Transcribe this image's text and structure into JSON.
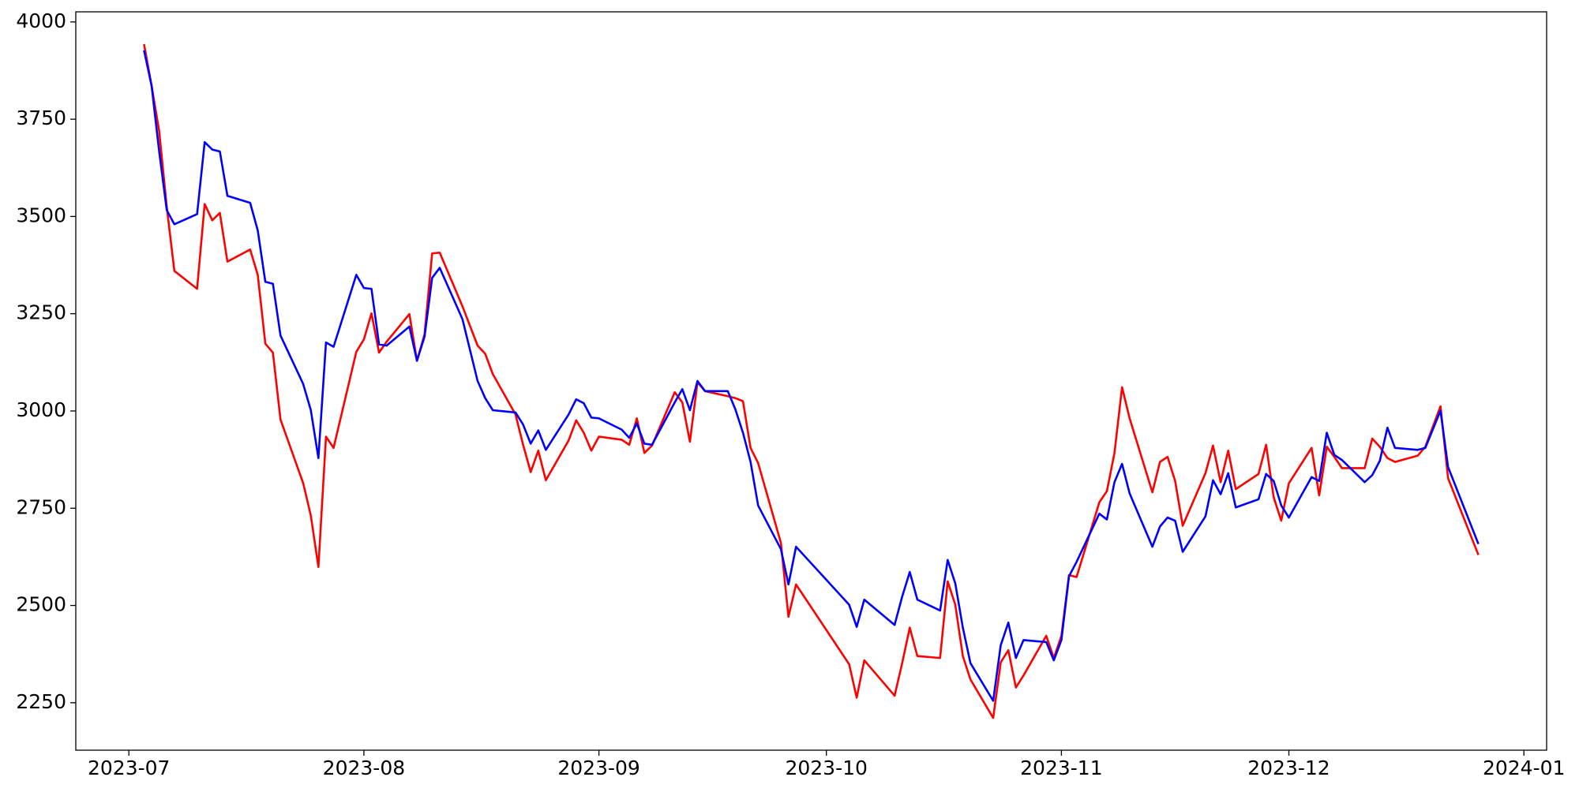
{
  "chart_data": {
    "type": "line",
    "x": [
      19541,
      19542,
      19543,
      19544,
      19545,
      19548,
      19549,
      19550,
      19551,
      19552,
      19555,
      19556,
      19557,
      19558,
      19559,
      19562,
      19563,
      19564,
      19565,
      19566,
      19569,
      19570,
      19571,
      19572,
      19573,
      19576,
      19577,
      19578,
      19579,
      19580,
      19583,
      19585,
      19586,
      19587,
      19590,
      19591,
      19592,
      19593,
      19594,
      19597,
      19598,
      19599,
      19600,
      19601,
      19604,
      19605,
      19606,
      19607,
      19608,
      19611,
      19612,
      19613,
      19614,
      19615,
      19618,
      19619,
      19620,
      19621,
      19622,
      19625,
      19626,
      19627,
      19634,
      19635,
      19636,
      19640,
      19641,
      19642,
      19643,
      19646,
      19647,
      19648,
      19649,
      19650,
      19653,
      19654,
      19655,
      19656,
      19657,
      19660,
      19661,
      19662,
      19663,
      19664,
      19667,
      19668,
      19669,
      19670,
      19671,
      19674,
      19675,
      19676,
      19677,
      19678,
      19681,
      19682,
      19683,
      19684,
      19685,
      19688,
      19689,
      19690,
      19691,
      19692,
      19695,
      19696,
      19697,
      19698,
      19699,
      19702,
      19703,
      19704,
      19705,
      19706,
      19709,
      19710,
      19712,
      19713,
      19717
    ],
    "series": [
      {
        "color": "#ff0000",
        "values": [
          3943,
          3836,
          3719,
          3524,
          3360,
          3314,
          3532,
          3490,
          3509,
          3384,
          3415,
          3350,
          3173,
          3150,
          2978,
          2814,
          2731,
          2599,
          2934,
          2905,
          3152,
          3184,
          3251,
          3150,
          3178,
          3249,
          3129,
          3197,
          3405,
          3407,
          3269,
          3168,
          3147,
          3095,
          2991,
          2913,
          2843,
          2898,
          2822,
          2924,
          2976,
          2944,
          2898,
          2934,
          2926,
          2913,
          2981,
          2892,
          2911,
          3048,
          3022,
          2921,
          3074,
          3051,
          3038,
          3033,
          3025,
          2905,
          2866,
          2661,
          2471,
          2554,
          2349,
          2263,
          2359,
          2268,
          2352,
          2443,
          2370,
          2365,
          2562,
          2502,
          2370,
          2310,
          2211,
          2354,
          2385,
          2289,
          2320,
          2422,
          2365,
          2422,
          2578,
          2573,
          2765,
          2794,
          2892,
          3061,
          2981,
          2791,
          2869,
          2882,
          2820,
          2705,
          2840,
          2911,
          2817,
          2898,
          2799,
          2838,
          2913,
          2778,
          2718,
          2814,
          2905,
          2783,
          2908,
          2882,
          2853,
          2853,
          2929,
          2908,
          2879,
          2869,
          2885,
          2908,
          3012,
          2827,
          2630
        ]
      },
      {
        "color": "#0000ff",
        "values": [
          3927,
          3836,
          3667,
          3516,
          3480,
          3506,
          3691,
          3672,
          3667,
          3553,
          3535,
          3464,
          3332,
          3327,
          3194,
          3069,
          3002,
          2879,
          3176,
          3165,
          3350,
          3316,
          3314,
          3171,
          3168,
          3217,
          3129,
          3191,
          3342,
          3368,
          3236,
          3077,
          3033,
          3002,
          2996,
          2965,
          2916,
          2950,
          2900,
          2991,
          3030,
          3020,
          2983,
          2981,
          2952,
          2931,
          2968,
          2916,
          2913,
          3022,
          3056,
          3002,
          3077,
          3051,
          3051,
          3004,
          2944,
          2869,
          2757,
          2645,
          2554,
          2651,
          2502,
          2445,
          2515,
          2450,
          2523,
          2586,
          2515,
          2487,
          2617,
          2557,
          2443,
          2352,
          2255,
          2398,
          2456,
          2365,
          2411,
          2406,
          2359,
          2411,
          2575,
          2612,
          2736,
          2721,
          2817,
          2864,
          2788,
          2651,
          2703,
          2726,
          2718,
          2638,
          2729,
          2822,
          2786,
          2840,
          2752,
          2773,
          2838,
          2820,
          2757,
          2726,
          2830,
          2820,
          2944,
          2887,
          2874,
          2817,
          2835,
          2872,
          2957,
          2905,
          2900,
          2905,
          3001,
          2856,
          2658
        ]
      }
    ],
    "xlim": [
      19532,
      19726
    ],
    "xticks": [
      {
        "value": 19539,
        "label": "2023-07"
      },
      {
        "value": 19570,
        "label": "2023-08"
      },
      {
        "value": 19601,
        "label": "2023-09"
      },
      {
        "value": 19631,
        "label": "2023-10"
      },
      {
        "value": 19662,
        "label": "2023-11"
      },
      {
        "value": 19692,
        "label": "2023-12"
      },
      {
        "value": 19723,
        "label": "2024-01"
      }
    ],
    "ylim": [
      2128,
      4026
    ],
    "yticks": [
      2250,
      2500,
      2750,
      3000,
      3250,
      3500,
      3750,
      4000
    ]
  }
}
